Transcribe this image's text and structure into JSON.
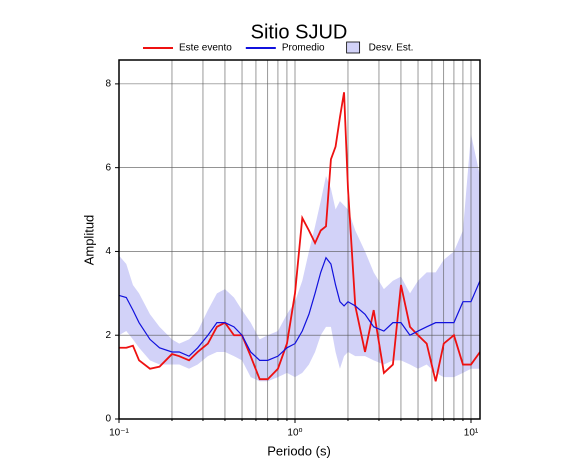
{
  "chart_data": {
    "type": "line",
    "title": "Sitio SJUD",
    "x_label": "Periodo (s)",
    "y_label": "Amplitud",
    "x_log": true,
    "grid": true,
    "legend": "top",
    "xlim": [
      0.1,
      11.25
    ],
    "ylim": [
      0,
      8.57
    ],
    "xticks": [
      {
        "value": 0.1,
        "label": "10⁻¹"
      },
      {
        "value": 1,
        "label": "10⁰"
      },
      {
        "value": 10,
        "label": "10¹"
      }
    ],
    "xminorticks": [
      0.2,
      0.3,
      0.4,
      0.5,
      0.6,
      0.7,
      0.8,
      0.9,
      2,
      3,
      4,
      5,
      6,
      7,
      8,
      9
    ],
    "yticks": [
      0,
      2,
      4,
      6,
      8
    ],
    "x": [
      0.1,
      0.11,
      0.12,
      0.13,
      0.15,
      0.17,
      0.2,
      0.22,
      0.25,
      0.28,
      0.32,
      0.36,
      0.4,
      0.45,
      0.5,
      0.56,
      0.63,
      0.7,
      0.8,
      0.9,
      1.0,
      1.1,
      1.2,
      1.3,
      1.4,
      1.5,
      1.6,
      1.7,
      1.8,
      1.9,
      2.0,
      2.2,
      2.5,
      2.8,
      3.2,
      3.6,
      4.0,
      4.5,
      5.0,
      5.6,
      6.3,
      7.0,
      8.0,
      9.0,
      10,
      11.25
    ],
    "series": [
      {
        "name": "Desv. Est.",
        "color": "#d2d2f8",
        "kind": "band",
        "upper": [
          3.9,
          3.7,
          3.2,
          3.0,
          2.5,
          2.2,
          1.9,
          1.8,
          1.9,
          2.1,
          2.6,
          3.0,
          3.1,
          2.9,
          2.6,
          2.3,
          1.9,
          2.0,
          2.1,
          2.5,
          2.8,
          3.3,
          4.0,
          4.6,
          5.2,
          5.8,
          5.5,
          5.0,
          5.2,
          5.1,
          5.0,
          4.5,
          4.0,
          3.5,
          3.1,
          3.3,
          3.4,
          3.0,
          3.3,
          3.5,
          3.5,
          3.8,
          4.0,
          4.5,
          6.8,
          5.8
        ],
        "lower": [
          2.0,
          2.1,
          1.9,
          1.7,
          1.4,
          1.3,
          1.3,
          1.3,
          1.2,
          1.3,
          1.5,
          1.6,
          1.6,
          1.5,
          1.4,
          1.0,
          0.9,
          0.9,
          1.0,
          1.1,
          1.0,
          1.1,
          1.3,
          1.6,
          2.0,
          2.2,
          2.2,
          1.6,
          1.2,
          1.5,
          1.6,
          1.5,
          1.5,
          1.4,
          1.3,
          1.4,
          1.4,
          1.3,
          1.2,
          1.3,
          1.1,
          1.0,
          1.0,
          1.1,
          1.2,
          1.2
        ]
      },
      {
        "name": "Este evento",
        "color": "#ee1111",
        "kind": "line",
        "values": [
          1.7,
          1.7,
          1.75,
          1.4,
          1.2,
          1.25,
          1.55,
          1.5,
          1.4,
          1.6,
          1.8,
          2.2,
          2.3,
          2.0,
          2.0,
          1.5,
          0.95,
          0.95,
          1.2,
          1.8,
          3.0,
          4.8,
          4.5,
          4.2,
          4.5,
          4.6,
          6.2,
          6.5,
          7.2,
          7.8,
          5.5,
          2.7,
          1.6,
          2.6,
          1.1,
          1.3,
          3.2,
          2.2,
          2.0,
          1.8,
          0.9,
          1.8,
          2.0,
          1.3,
          1.3,
          1.6
        ]
      },
      {
        "name": "Promedio",
        "color": "#1111dd",
        "kind": "line",
        "values": [
          2.95,
          2.9,
          2.6,
          2.3,
          1.9,
          1.7,
          1.6,
          1.6,
          1.5,
          1.7,
          2.0,
          2.3,
          2.3,
          2.2,
          2.0,
          1.6,
          1.4,
          1.4,
          1.5,
          1.7,
          1.8,
          2.1,
          2.5,
          3.0,
          3.5,
          3.85,
          3.7,
          3.2,
          2.8,
          2.7,
          2.8,
          2.7,
          2.5,
          2.2,
          2.1,
          2.3,
          2.3,
          2.0,
          2.1,
          2.2,
          2.3,
          2.3,
          2.3,
          2.8,
          2.8,
          3.3
        ]
      }
    ]
  }
}
